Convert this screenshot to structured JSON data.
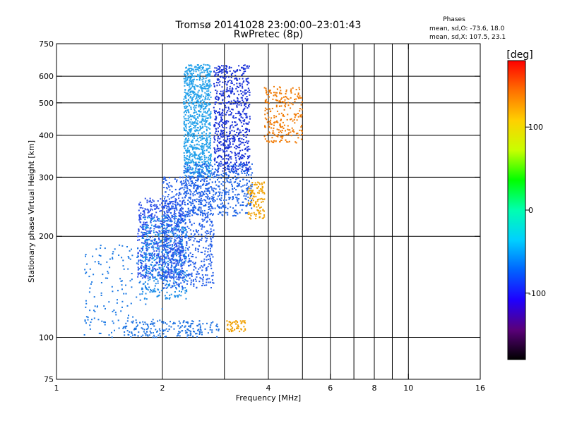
{
  "chart_data": {
    "type": "scatter",
    "title": "Tromsø 20141028 23:00:00–23:01:43",
    "subtitle": "RwPretec (8p)",
    "xlabel": "Frequency [MHz]",
    "ylabel": "Stationary phase Virtual Height [km]",
    "x_scale": "log",
    "y_scale": "log",
    "xlim": [
      1,
      16
    ],
    "ylim": [
      75,
      750
    ],
    "grid": true,
    "x_ticks": [
      1,
      2,
      4,
      6,
      8,
      10,
      16
    ],
    "x_ticks_unlabeled": [
      3,
      5,
      7,
      9
    ],
    "y_ticks": [
      75,
      100,
      200,
      300,
      400,
      500,
      600,
      750
    ],
    "info": {
      "title": "Phases",
      "line_o": "mean, sd,O: -73.6, 18.0",
      "line_x": "mean, sd,X: 107.5, 23.1"
    },
    "colorbar": {
      "unit": "[deg]",
      "range": [
        -180,
        180
      ],
      "ticks": [
        100,
        0,
        -100
      ],
      "stops": [
        "#000000",
        "#5a007a",
        "#1e00ff",
        "#0064ff",
        "#00d0ff",
        "#00ffb0",
        "#00ff00",
        "#c8ff00",
        "#ffd000",
        "#ff7000",
        "#ff0000"
      ]
    },
    "series": [
      {
        "color": "#1a6fe0",
        "x_range": [
          1.55,
          2.9
        ],
        "y_range": [
          100,
          112
        ],
        "n": 180,
        "phase": -95
      },
      {
        "color": "#2a4de8",
        "x_range": [
          1.7,
          2.3
        ],
        "y_range": [
          150,
          260
        ],
        "n": 650,
        "phase": -100
      },
      {
        "color": "#1c8ee8",
        "x_range": [
          1.75,
          2.35
        ],
        "y_range": [
          130,
          230
        ],
        "n": 400,
        "phase": -85
      },
      {
        "color": "#22a0ea",
        "x_range": [
          2.3,
          2.75
        ],
        "y_range": [
          300,
          650
        ],
        "n": 900,
        "phase": -80
      },
      {
        "color": "#1f5ae8",
        "x_range": [
          2.0,
          2.8
        ],
        "y_range": [
          140,
          300
        ],
        "n": 700,
        "phase": -92
      },
      {
        "color": "#1830d8",
        "x_range": [
          2.8,
          3.55
        ],
        "y_range": [
          310,
          650
        ],
        "n": 700,
        "phase": -105
      },
      {
        "color": "#1e64e6",
        "x_range": [
          2.3,
          3.6
        ],
        "y_range": [
          230,
          330
        ],
        "n": 500,
        "phase": -90
      },
      {
        "color": "#f0a000",
        "x_range": [
          3.5,
          3.9
        ],
        "y_range": [
          225,
          290
        ],
        "n": 110,
        "phase": 120
      },
      {
        "color": "#f07800",
        "x_range": [
          3.9,
          5.0
        ],
        "y_range": [
          380,
          560
        ],
        "n": 240,
        "phase": 135
      },
      {
        "color": "#f0a000",
        "x_range": [
          3.05,
          3.45
        ],
        "y_range": [
          104,
          112
        ],
        "n": 50,
        "phase": 120
      },
      {
        "color": "#1a78e4",
        "x_range": [
          1.2,
          2.0
        ],
        "y_range": [
          100,
          190
        ],
        "n": 200,
        "phase": -90
      }
    ]
  }
}
